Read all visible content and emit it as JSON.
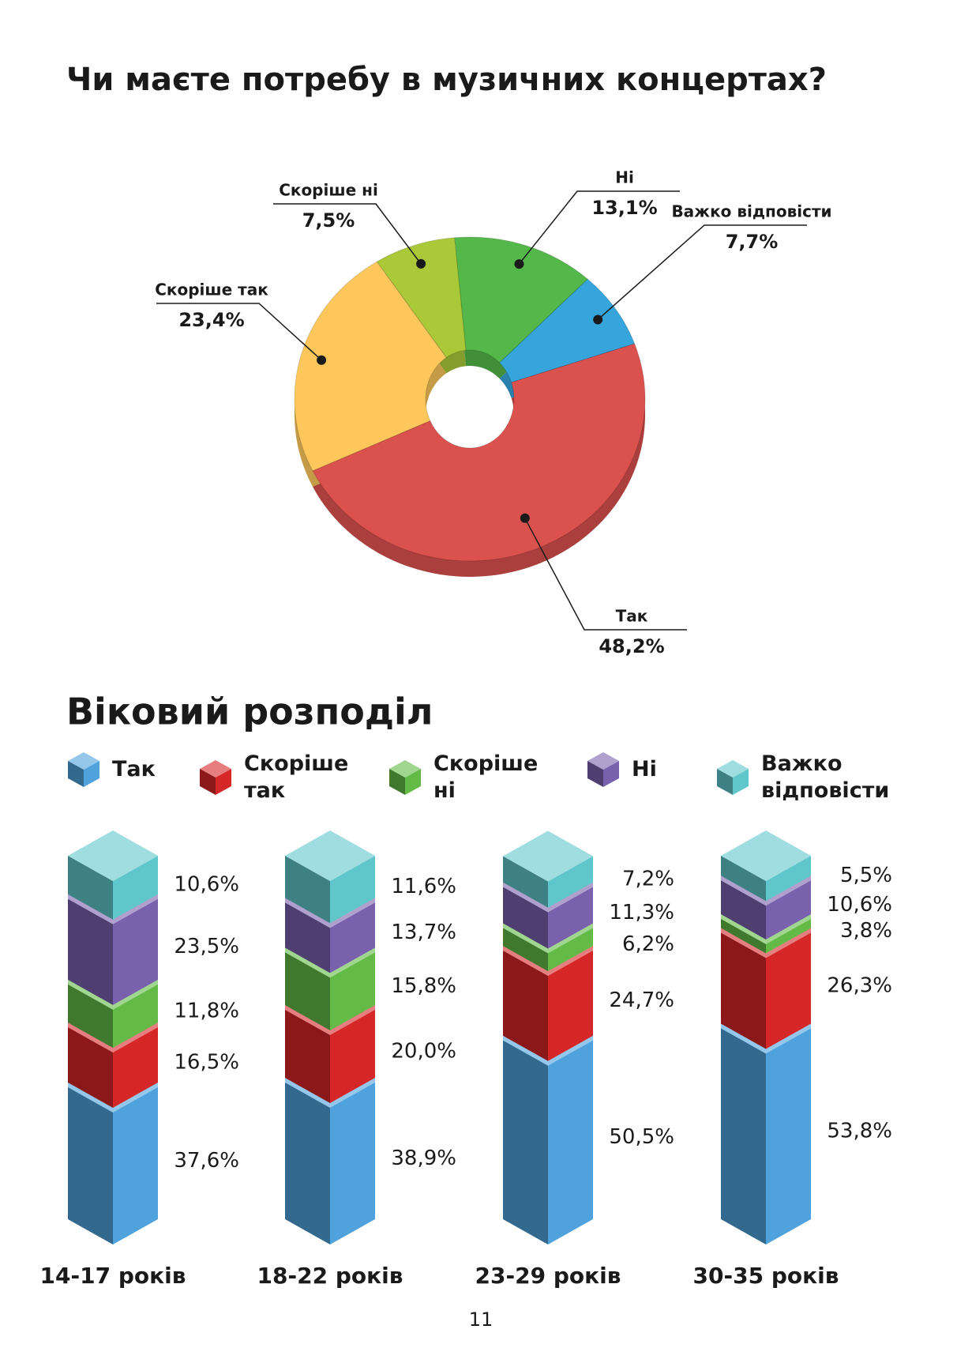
{
  "chart_data": [
    {
      "type": "pie",
      "title": "Чи маєте потребу в музичних концертах?",
      "categories": [
        "Так",
        "Скоріше так",
        "Скоріше ні",
        "Ні",
        "Важко відповісти"
      ],
      "values": [
        48.2,
        23.4,
        7.5,
        13.1,
        7.7
      ],
      "value_labels": [
        "48,2%",
        "23,4%",
        "7,5%",
        "13,1%",
        "7,7%"
      ],
      "colors": [
        "#da514e",
        "#fdc75b",
        "#a9c938",
        "#53b749",
        "#36a5dc"
      ]
    },
    {
      "type": "stacked_bar",
      "title": "Віковий розподіл",
      "categories": [
        "14-17 років",
        "18-22 років",
        "23-29 років",
        "30-35 років"
      ],
      "series": [
        {
          "name": "Так",
          "color": "#4fa2dc",
          "values": [
            37.6,
            38.9,
            50.5,
            53.8
          ],
          "value_labels": [
            "37,6%",
            "38,9%",
            "50,5%",
            "53,8%"
          ]
        },
        {
          "name": "Скоріше так",
          "color": "#d62728",
          "values": [
            16.5,
            20.0,
            24.7,
            26.3
          ],
          "value_labels": [
            "16,5%",
            "20,0%",
            "24,7%",
            "26,3%"
          ]
        },
        {
          "name": "Скоріше ні",
          "color": "#63ba46",
          "values": [
            11.8,
            15.8,
            6.2,
            3.8
          ],
          "value_labels": [
            "11,8%",
            "15,8%",
            "6,2%",
            "3,8%"
          ]
        },
        {
          "name": "Ні",
          "color": "#7a61ae",
          "values": [
            23.5,
            13.7,
            11.3,
            10.6
          ],
          "value_labels": [
            "23,5%",
            "13,7%",
            "11,3%",
            "10,6%"
          ]
        },
        {
          "name": "Важко відповісти",
          "color": "#5fc6cb",
          "values": [
            10.6,
            11.6,
            7.2,
            5.5
          ],
          "value_labels": [
            "10,6%",
            "11,6%",
            "7,2%",
            "5,5%"
          ]
        }
      ]
    }
  ],
  "page_number": "11"
}
